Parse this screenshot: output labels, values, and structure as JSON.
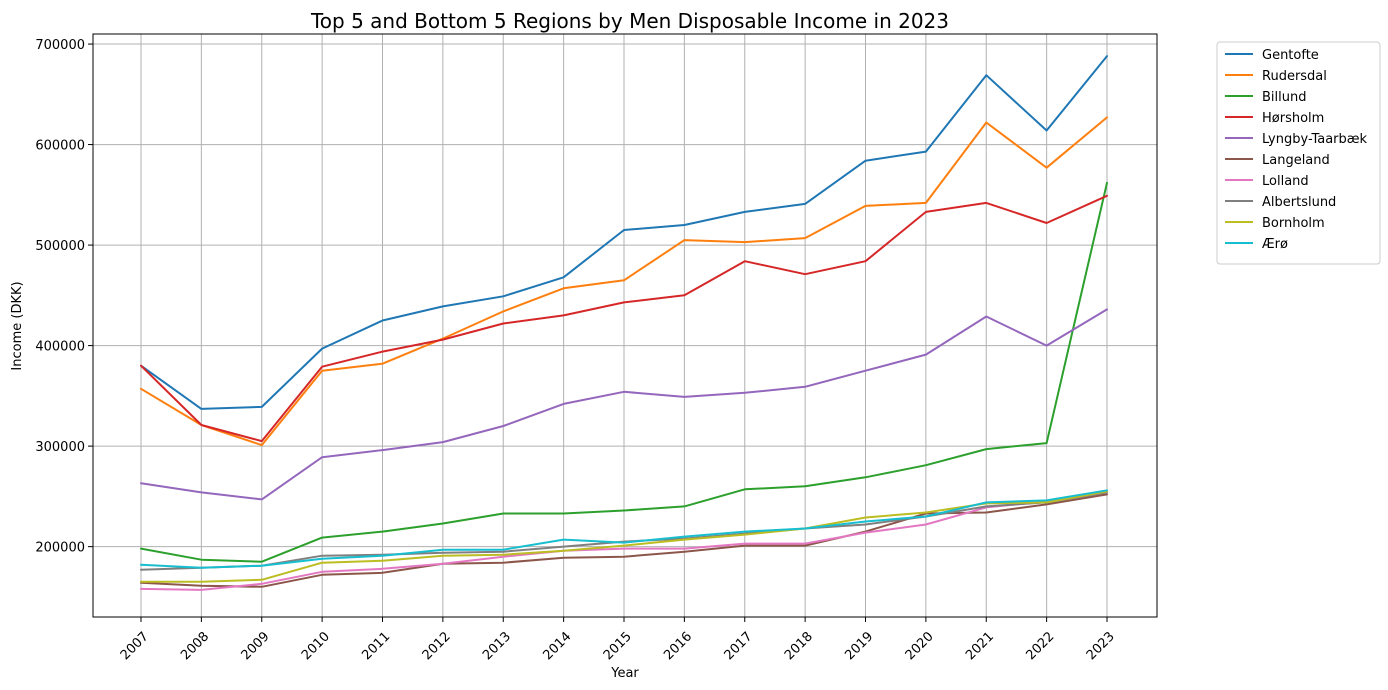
{
  "chart_data": {
    "type": "line",
    "title": "Top 5 and Bottom 5 Regions by Men Disposable Income in 2023",
    "xlabel": "Year",
    "ylabel": "Income (DKK)",
    "x": [
      "2007",
      "2008",
      "2009",
      "2010",
      "2011",
      "2012",
      "2013",
      "2014",
      "2015",
      "2016",
      "2017",
      "2018",
      "2019",
      "2020",
      "2021",
      "2022",
      "2023"
    ],
    "ylim": [
      130000,
      710000
    ],
    "yticks": [
      200000,
      300000,
      400000,
      500000,
      600000,
      700000
    ],
    "grid": true,
    "legend_position": "outside-top-right",
    "series": [
      {
        "name": "Gentofte",
        "color": "#1f77b4",
        "values": [
          380000,
          337000,
          339000,
          397000,
          425000,
          439000,
          449000,
          468000,
          515000,
          520000,
          533000,
          541000,
          584000,
          593000,
          669000,
          614000,
          688000
        ]
      },
      {
        "name": "Rudersdal",
        "color": "#ff7f0e",
        "values": [
          357000,
          321000,
          301000,
          375000,
          382000,
          407000,
          434000,
          457000,
          465000,
          505000,
          503000,
          507000,
          539000,
          542000,
          622000,
          577000,
          627000
        ]
      },
      {
        "name": "Billund",
        "color": "#2ca02c",
        "values": [
          198000,
          187000,
          185000,
          209000,
          215000,
          223000,
          233000,
          233000,
          236000,
          240000,
          257000,
          260000,
          269000,
          281000,
          297000,
          303000,
          562000
        ]
      },
      {
        "name": "Hørsholm",
        "color": "#d62728",
        "values": [
          380000,
          321000,
          305000,
          379000,
          394000,
          406000,
          422000,
          430000,
          443000,
          450000,
          484000,
          471000,
          484000,
          533000,
          542000,
          522000,
          549000
        ]
      },
      {
        "name": "Lyngby-Taarbæk",
        "color": "#9467bd",
        "values": [
          263000,
          254000,
          247000,
          289000,
          296000,
          304000,
          320000,
          342000,
          354000,
          349000,
          353000,
          359000,
          375000,
          391000,
          429000,
          400000,
          436000
        ]
      },
      {
        "name": "Langeland",
        "color": "#8c564b",
        "values": [
          164000,
          161000,
          160000,
          172000,
          174000,
          183000,
          184000,
          189000,
          190000,
          195000,
          201000,
          201000,
          215000,
          233000,
          234000,
          242000,
          252000
        ]
      },
      {
        "name": "Lolland",
        "color": "#e377c2",
        "values": [
          158000,
          157000,
          163000,
          175000,
          178000,
          183000,
          190000,
          196000,
          198000,
          198000,
          203000,
          203000,
          214000,
          222000,
          239000,
          245000,
          254000
        ]
      },
      {
        "name": "Albertslund",
        "color": "#7f7f7f",
        "values": [
          177000,
          179000,
          181000,
          191000,
          192000,
          194000,
          195000,
          200000,
          205000,
          208000,
          213000,
          218000,
          222000,
          230000,
          240000,
          244000,
          254000
        ]
      },
      {
        "name": "Bornholm",
        "color": "#bcbd22",
        "values": [
          165000,
          165000,
          167000,
          184000,
          186000,
          191000,
          192000,
          196000,
          201000,
          207000,
          212000,
          218000,
          229000,
          234000,
          243000,
          244000,
          255000
        ]
      },
      {
        "name": "Ærø",
        "color": "#17becf",
        "values": [
          182000,
          179000,
          181000,
          188000,
          191000,
          197000,
          197000,
          207000,
          204000,
          210000,
          215000,
          218000,
          225000,
          230000,
          244000,
          246000,
          256000
        ]
      }
    ]
  }
}
